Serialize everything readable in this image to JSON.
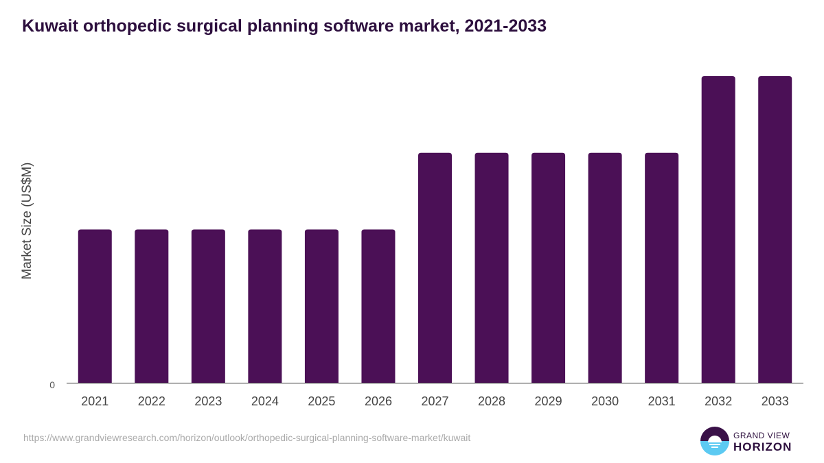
{
  "chart_data": {
    "type": "bar",
    "title": "Kuwait orthopedic surgical planning software market, 2021-2033",
    "xlabel": "",
    "ylabel": "Market Size (US$M)",
    "categories": [
      "2021",
      "2022",
      "2023",
      "2024",
      "2025",
      "2026",
      "2027",
      "2028",
      "2029",
      "2030",
      "2031",
      "2032",
      "2033"
    ],
    "values": [
      0.2,
      0.2,
      0.2,
      0.2,
      0.2,
      0.2,
      0.3,
      0.3,
      0.3,
      0.3,
      0.3,
      0.4,
      0.4
    ],
    "ylim": [
      0,
      0.4
    ],
    "y_ticks": [
      "0"
    ],
    "grid": false,
    "bar_color": "#4b1056"
  },
  "source": "https://www.grandviewresearch.com/horizon/outlook/orthopedic-surgical-planning-software-market/kuwait",
  "logo": {
    "line1": "GRAND VIEW",
    "line2": "HORIZON"
  }
}
